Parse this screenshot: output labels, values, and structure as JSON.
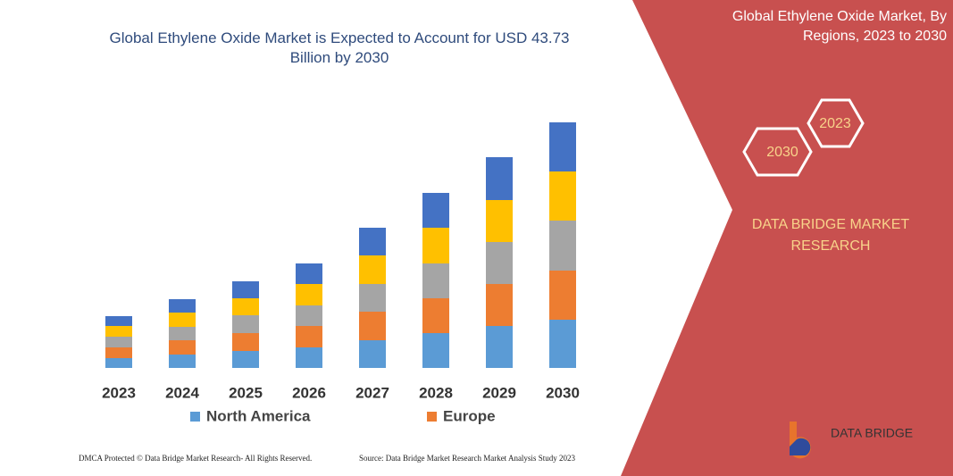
{
  "chart_data": {
    "type": "stacked_bar",
    "title": "Global Ethylene Oxide Market is Expected to Account for USD 43.73 Billion by 2030",
    "categories": [
      "2023",
      "2024",
      "2025",
      "2026",
      "2027",
      "2028",
      "2029",
      "2030"
    ],
    "series": [
      {
        "name": "North America",
        "color": "#5b9bd5",
        "values": [
          11,
          15,
          19,
          23,
          31,
          39,
          47,
          54
        ]
      },
      {
        "name": "Europe",
        "color": "#ed7d31",
        "values": [
          12,
          16,
          20,
          24,
          32,
          39,
          47,
          55
        ]
      },
      {
        "color": "#a5a5a5",
        "values": [
          12,
          15,
          20,
          23,
          31,
          39,
          47,
          56
        ]
      },
      {
        "color": "#ffc000",
        "values": [
          12,
          16,
          19,
          24,
          32,
          40,
          47,
          55
        ]
      },
      {
        "color": "#4472c4",
        "values": [
          11,
          15,
          19,
          23,
          31,
          39,
          48,
          55
        ]
      }
    ]
  },
  "panel": {
    "title": "Global Ethylene Oxide Market, By Regions, 2023 to 2030",
    "hex_a": "2023",
    "hex_b": "2030",
    "brand": "DATA BRIDGE MARKET RESEARCH",
    "logo": "DATA BRIDGE"
  },
  "footer": {
    "left": "DMCA Protected © Data Bridge Market Research- All Rights Reserved.",
    "right": "Source: Data Bridge Market Research Market Analysis Study 2023"
  }
}
